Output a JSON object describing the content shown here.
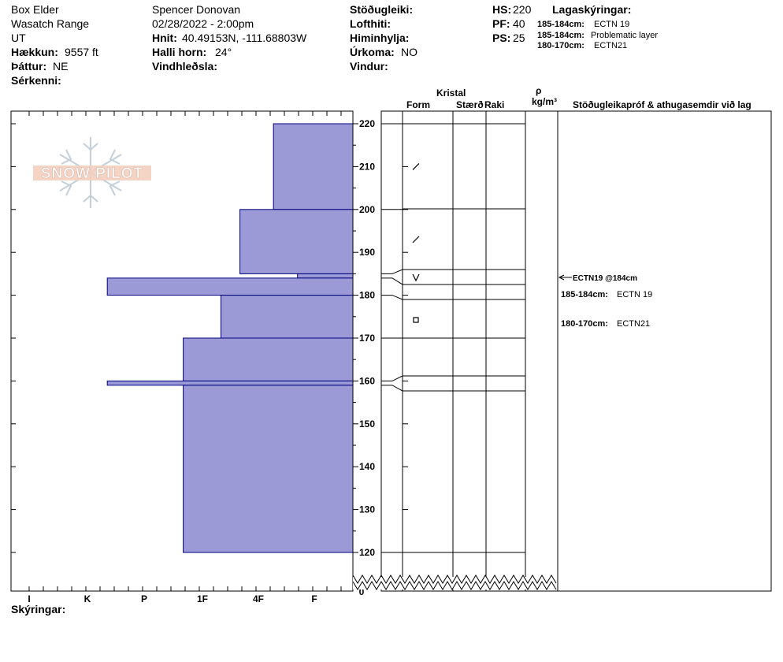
{
  "header": {
    "location": "Box Elder",
    "range": "Wasatch Range",
    "state": "UT",
    "elevation_label": "Hækkun:",
    "elevation_value": "9557 ft",
    "aspect_label": "Þáttur:",
    "aspect_value": "NE",
    "features_label": "Sérkenni:",
    "observer": "Spencer Donovan",
    "datetime": "02/28/2022 - 2:00pm",
    "coords_label": "Hnit:",
    "coords_value": "40.49153N, -111.68803W",
    "slope_label": "Halli horn:",
    "slope_value": "24°",
    "wind_loading_label": "Vindhleðsla:",
    "stability_label": "Stöðugleiki:",
    "air_temp_label": "Lofthiti:",
    "sky_label": "Himinhylja:",
    "precip_label": "Úrkoma:",
    "precip_value": "NO",
    "wind_label": "Vindur:",
    "hs_label": "HS:",
    "hs_value": "220",
    "pf_label": "PF:",
    "pf_value": "40",
    "ps_label": "PS:",
    "ps_value": "25",
    "layer_notes_title": "Lagaskýringar:",
    "layer_notes": [
      {
        "range": "185-184cm:",
        "text": "ECTN 19"
      },
      {
        "range": "185-184cm:",
        "text": "Problematic layer"
      },
      {
        "range": "180-170cm:",
        "text": "ECTN21"
      }
    ]
  },
  "columns": {
    "crystal": "Kristal",
    "form": "Form",
    "size": "Stærð",
    "moisture": "Raki",
    "rho": "ρ",
    "density_unit": "kg/m³",
    "tests": "Stöðugleikapróf & athugasemdir við lag"
  },
  "logo_text": "SNOW PILOT",
  "footer": {
    "notes_label": "Skýringar:"
  },
  "colors": {
    "hardness_fill": "#9c9ad6",
    "hardness_stroke": "#000080"
  },
  "chart_data": {
    "type": "bar",
    "orientation": "horizontal",
    "y_unit": "cm",
    "y_ticks": [
      220,
      210,
      200,
      190,
      180,
      170,
      160,
      150,
      140,
      130,
      120
    ],
    "y_zero_label": "0",
    "ylim": [
      115,
      222
    ],
    "hardness_scale": [
      "I",
      "K",
      "P",
      "1F",
      "4F",
      "F"
    ],
    "layers": [
      {
        "top": 220,
        "bottom": 200,
        "hardness": 0.73
      },
      {
        "top": 200,
        "bottom": 185,
        "hardness": 1.33
      },
      {
        "top": 185,
        "bottom": 184,
        "hardness": 0.3
      },
      {
        "top": 184,
        "bottom": 180,
        "hardness": 3.65
      },
      {
        "top": 180,
        "bottom": 170,
        "hardness": 1.67
      },
      {
        "top": 170,
        "bottom": 160,
        "hardness": 2.33
      },
      {
        "top": 160,
        "bottom": 159,
        "hardness": 3.65
      },
      {
        "top": 159,
        "bottom": 120,
        "hardness": 2.33
      }
    ],
    "boundaries": [
      220,
      200,
      185,
      184,
      180,
      170,
      160,
      159,
      120
    ],
    "grain_symbols": [
      {
        "height": 210,
        "symbol": "/"
      },
      {
        "height": 193,
        "symbol": "/"
      },
      {
        "height": 184,
        "symbol": "V"
      },
      {
        "height": 175,
        "symbol": "□"
      }
    ],
    "test_results": [
      {
        "height": 184,
        "text": "ECTN19 @184cm"
      },
      {
        "text": "185-184cm:",
        "detail": "ECTN 19"
      },
      {
        "text": "180-170cm:",
        "detail": "ECTN21"
      }
    ]
  }
}
